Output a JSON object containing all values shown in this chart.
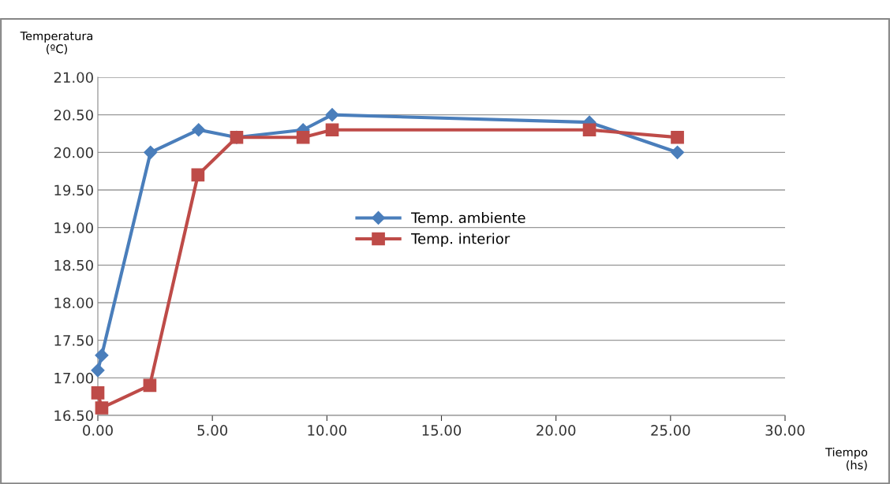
{
  "chart_data": {
    "type": "line",
    "xlabel": "Tiempo\n(hs)",
    "ylabel": "Temperatura\n(ºC)",
    "xlim": [
      0,
      30
    ],
    "xticks": [
      {
        "value": 0,
        "label": "0.00"
      },
      {
        "value": 5,
        "label": "5.00"
      },
      {
        "value": 10,
        "label": "10.00"
      },
      {
        "value": 15,
        "label": "15.00"
      },
      {
        "value": 20,
        "label": "20.00"
      },
      {
        "value": 25,
        "label": "25.00"
      },
      {
        "value": 30,
        "label": "30.00"
      }
    ],
    "ylim": [
      16.5,
      21
    ],
    "yticks": [
      {
        "value": 16.5,
        "label": "16.50"
      },
      {
        "value": 17,
        "label": "17.00"
      },
      {
        "value": 17.5,
        "label": "17.50"
      },
      {
        "value": 18,
        "label": "18.00"
      },
      {
        "value": 18.5,
        "label": "18.50"
      },
      {
        "value": 19,
        "label": "19.00"
      },
      {
        "value": 19.5,
        "label": "19.50"
      },
      {
        "value": 20,
        "label": "20.00"
      },
      {
        "value": 20.5,
        "label": "20.50"
      },
      {
        "value": 21,
        "label": "21.00"
      }
    ],
    "grid": "y",
    "legend": "center",
    "series": [
      {
        "name": "Temp. ambiente",
        "color": "#4a7ebb",
        "marker": "diamond",
        "x": [
          0,
          0.17,
          2.3,
          4.4,
          6.06,
          8.96,
          10.23,
          21.46,
          25.3
        ],
        "values": [
          17.1,
          17.3,
          20.0,
          20.3,
          20.2,
          20.3,
          20.5,
          20.4,
          20.0
        ]
      },
      {
        "name": "Temp. interior",
        "color": "#be4b48",
        "marker": "square",
        "x": [
          0,
          0.17,
          2.27,
          4.37,
          6.06,
          8.96,
          10.23,
          21.46,
          25.3
        ],
        "values": [
          16.8,
          16.6,
          16.9,
          19.7,
          20.2,
          20.2,
          20.3,
          20.3,
          20.2
        ]
      }
    ]
  }
}
